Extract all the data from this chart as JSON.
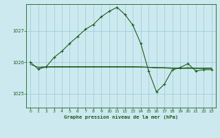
{
  "title": "Graphe pression niveau de la mer (hPa)",
  "bg_color": "#cde9f0",
  "grid_color": "#9ecfda",
  "line_color": "#1a5c1a",
  "xlim": [
    -0.5,
    23.5
  ],
  "ylim": [
    1024.55,
    1027.85
  ],
  "yticks": [
    1025,
    1026,
    1027
  ],
  "xticks": [
    0,
    1,
    2,
    3,
    4,
    5,
    6,
    7,
    8,
    9,
    10,
    11,
    12,
    13,
    14,
    15,
    16,
    17,
    18,
    19,
    20,
    21,
    22,
    23
  ],
  "series1_x": [
    0,
    1,
    2,
    3,
    4,
    5,
    6,
    7,
    8,
    9,
    10,
    11,
    12,
    13,
    14,
    15,
    16,
    17,
    18,
    19,
    20,
    21,
    22,
    23
  ],
  "series1_y": [
    1026.0,
    1025.78,
    1025.85,
    1026.15,
    1026.35,
    1026.6,
    1026.82,
    1027.05,
    1027.2,
    1027.45,
    1027.62,
    1027.75,
    1027.52,
    1027.18,
    1026.6,
    1025.72,
    1025.05,
    1025.3,
    1025.75,
    1025.83,
    1025.95,
    1025.72,
    1025.76,
    1025.76
  ],
  "series2_x": [
    0,
    1,
    2,
    3,
    4,
    5,
    6,
    7,
    8,
    9,
    10,
    11,
    12,
    13,
    14,
    15,
    16,
    17,
    18,
    19,
    20,
    21,
    22,
    23
  ],
  "series2_y": [
    1025.93,
    1025.84,
    1025.85,
    1025.86,
    1025.86,
    1025.86,
    1025.86,
    1025.86,
    1025.86,
    1025.86,
    1025.86,
    1025.86,
    1025.86,
    1025.86,
    1025.85,
    1025.84,
    1025.83,
    1025.82,
    1025.81,
    1025.8,
    1025.8,
    1025.8,
    1025.8,
    1025.8
  ],
  "series3_x": [
    1,
    2,
    3,
    4,
    5,
    6,
    7,
    8,
    9,
    10,
    11,
    12,
    13,
    14,
    15,
    16,
    17,
    18,
    19,
    20,
    21,
    22,
    23
  ],
  "series3_y": [
    1025.84,
    1025.85,
    1025.85,
    1025.85,
    1025.85,
    1025.85,
    1025.85,
    1025.85,
    1025.85,
    1025.85,
    1025.85,
    1025.85,
    1025.85,
    1025.85,
    1025.84,
    1025.83,
    1025.83,
    1025.82,
    1025.82,
    1025.82,
    1025.82,
    1025.82,
    1025.82
  ],
  "series4_x": [
    1,
    2,
    3,
    4,
    5,
    6,
    7,
    8,
    9,
    10,
    11,
    12,
    13,
    14,
    15,
    16,
    17,
    18,
    19,
    20,
    21,
    22,
    23
  ],
  "series4_y": [
    1025.83,
    1025.84,
    1025.84,
    1025.84,
    1025.84,
    1025.84,
    1025.84,
    1025.84,
    1025.84,
    1025.84,
    1025.84,
    1025.84,
    1025.84,
    1025.84,
    1025.83,
    1025.81,
    1025.81,
    1025.8,
    1025.8,
    1025.83,
    1025.8,
    1025.8,
    1025.8
  ]
}
